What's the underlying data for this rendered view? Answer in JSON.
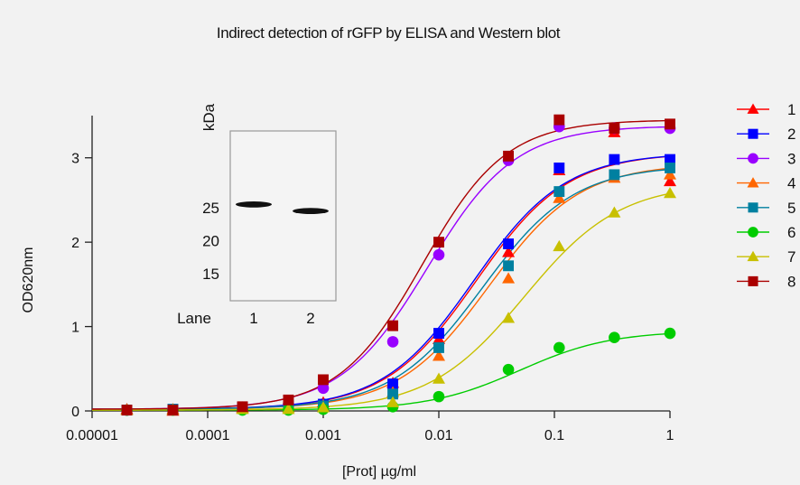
{
  "chart_data": {
    "type": "scatter",
    "title": "Indirect detection of rGFP by ELISA and Western blot",
    "xlabel": "[Prot] µg/ml",
    "ylabel": "OD620nm",
    "x_scale": "log",
    "xlim": [
      1e-05,
      1
    ],
    "ylim": [
      0,
      3.5
    ],
    "x_ticks": [
      1e-05,
      0.0001,
      0.001,
      0.01,
      0.1,
      1
    ],
    "x_tick_labels": [
      "0.00001",
      "0.0001",
      "0.001",
      "0.01",
      "0.1",
      "1"
    ],
    "y_ticks": [
      0,
      1,
      2,
      3
    ],
    "y_tick_labels": [
      "0",
      "1",
      "2",
      "3"
    ],
    "legend_position": "right",
    "grid": false,
    "x": [
      2e-05,
      5e-05,
      0.0002,
      0.0005,
      0.001,
      0.004,
      0.01,
      0.04,
      0.11,
      0.33,
      1
    ],
    "series": [
      {
        "name": "1",
        "color": "#ff0000",
        "marker": "triangle",
        "values": [
          0.02,
          0.0,
          0.04,
          0.05,
          0.1,
          0.33,
          0.85,
          1.88,
          2.85,
          3.3,
          2.72
        ],
        "fit": {
          "bottom": 0.02,
          "top": 3.06,
          "ec50": 0.021,
          "hill": 1.1
        }
      },
      {
        "name": "2",
        "color": "#0000ff",
        "marker": "square",
        "values": [
          0.01,
          0.02,
          0.04,
          0.06,
          0.08,
          0.32,
          0.92,
          1.98,
          2.88,
          2.98,
          2.98
        ],
        "fit": {
          "bottom": 0.02,
          "top": 3.06,
          "ec50": 0.02,
          "hill": 1.1
        }
      },
      {
        "name": "3",
        "color": "#9900ff",
        "marker": "circle",
        "values": [
          0.01,
          0.02,
          0.03,
          0.08,
          0.27,
          0.82,
          1.85,
          2.97,
          3.37,
          3.35,
          3.35
        ],
        "fit": {
          "bottom": 0.02,
          "top": 3.38,
          "ec50": 0.008,
          "hill": 1.15
        }
      },
      {
        "name": "4",
        "color": "#ff6600",
        "marker": "triangle",
        "values": [
          0.01,
          0.02,
          0.03,
          0.04,
          0.07,
          0.22,
          0.65,
          1.57,
          2.52,
          2.76,
          2.8
        ],
        "fit": {
          "bottom": 0.02,
          "top": 2.93,
          "ec50": 0.027,
          "hill": 1.1
        }
      },
      {
        "name": "5",
        "color": "#0080a0",
        "marker": "square",
        "values": [
          0.01,
          0.02,
          0.03,
          0.04,
          0.06,
          0.2,
          0.75,
          1.72,
          2.6,
          2.8,
          2.88
        ],
        "fit": {
          "bottom": 0.02,
          "top": 2.91,
          "ec50": 0.024,
          "hill": 1.1
        }
      },
      {
        "name": "6",
        "color": "#00cc00",
        "marker": "circle",
        "values": [
          0.01,
          0.01,
          0.01,
          0.01,
          0.02,
          0.05,
          0.17,
          0.49,
          0.75,
          0.87,
          0.92
        ],
        "fit": {
          "bottom": 0.01,
          "top": 0.95,
          "ec50": 0.05,
          "hill": 1.1
        }
      },
      {
        "name": "7",
        "color": "#c8c000",
        "marker": "triangle",
        "values": [
          0.01,
          0.01,
          0.02,
          0.02,
          0.04,
          0.1,
          0.38,
          1.1,
          1.95,
          2.35,
          2.58
        ],
        "fit": {
          "bottom": 0.01,
          "top": 2.7,
          "ec50": 0.055,
          "hill": 1.05
        }
      },
      {
        "name": "8",
        "color": "#aa0000",
        "marker": "square",
        "values": [
          0.01,
          0.01,
          0.05,
          0.13,
          0.37,
          1.01,
          2.0,
          3.02,
          3.45,
          3.35,
          3.4
        ],
        "fit": {
          "bottom": 0.02,
          "top": 3.45,
          "ec50": 0.0072,
          "hill": 1.2
        }
      }
    ]
  },
  "inset": {
    "kda_label": "kDa",
    "markers": [
      {
        "label": "25",
        "kda": 25
      },
      {
        "label": "20",
        "kda": 20
      },
      {
        "label": "15",
        "kda": 15
      }
    ],
    "lane_title": "Lane",
    "lanes": [
      {
        "label": "1",
        "band_kda": 25.5
      },
      {
        "label": "2",
        "band_kda": 24.5
      }
    ]
  }
}
